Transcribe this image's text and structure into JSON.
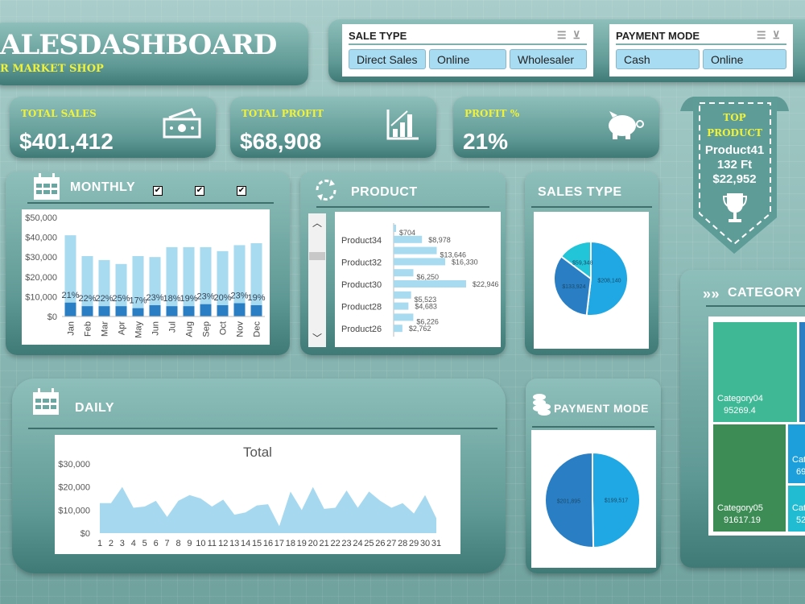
{
  "header": {
    "title": "ALESDASHBOARD",
    "subtitle": "R MARKET SHOP"
  },
  "slicers": [
    {
      "title": "SALE TYPE",
      "items": [
        "Direct Sales",
        "Online",
        "Wholesaler"
      ]
    },
    {
      "title": "PAYMENT MODE",
      "items": [
        "Cash",
        "Online"
      ]
    }
  ],
  "kpis": [
    {
      "label": "TOTAL SALES",
      "value": "$401,412",
      "icon": "money-icon"
    },
    {
      "label": "TOTAL PROFIT",
      "value": "$68,908",
      "icon": "bar-chart-icon"
    },
    {
      "label": "PROFIT %",
      "value": "21%",
      "icon": "piggy-bank-icon"
    }
  ],
  "top_product": {
    "line1": "TOP",
    "line2": "PRODUCT",
    "name": "Product41",
    "qty": "132 Ft",
    "value": "$22,952"
  },
  "panels": {
    "monthly": "MONTHLY",
    "product": "PRODUCT",
    "sales_type": "SALES TYPE",
    "daily": "DAILY",
    "payment_mode": "PAYMENT MODE",
    "category": "CATEGORY"
  },
  "colors": {
    "accent_yellow": "#f0f23a",
    "light_bar": "#a8daf0",
    "dark_bar": "#2a7fc4",
    "area": "#a6d9ef"
  },
  "chart_data": [
    {
      "type": "bar",
      "name": "monthly",
      "categories": [
        "Jan",
        "Feb",
        "Mar",
        "Apr",
        "May",
        "Jun",
        "Jul",
        "Aug",
        "Sep",
        "Oct",
        "Nov",
        "Dec"
      ],
      "series": [
        {
          "values": [
            41000,
            30500,
            28500,
            26500,
            30500,
            30000,
            35000,
            35000,
            35000,
            33000,
            36000,
            37000
          ]
        },
        {
          "values": [
            7000,
            5200,
            5200,
            5200,
            4200,
            5700,
            5200,
            5200,
            6200,
            5700,
            6700,
            5700
          ]
        }
      ],
      "data_labels": [
        "21%",
        "22%",
        "22%",
        "25%",
        "17%",
        "23%",
        "18%",
        "19%",
        "23%",
        "20%",
        "23%",
        "19%"
      ],
      "yticks": [
        "$0",
        "$10,000",
        "$20,000",
        "$30,000",
        "$40,000",
        "$50,000"
      ],
      "ylim": [
        0,
        50000
      ]
    },
    {
      "type": "bar",
      "name": "product",
      "orientation": "horizontal",
      "categories": [
        "",
        "Product34",
        "",
        "Product32",
        "",
        "Product30",
        "",
        "Product28",
        "",
        "Product26"
      ],
      "values": [
        704,
        8978,
        13646,
        16330,
        6250,
        22946,
        5523,
        4683,
        6226,
        2762
      ],
      "data_labels": [
        "$704",
        "$8,978",
        "$13,646",
        "$16,330",
        "$6,250",
        "$22,946",
        "$5,523",
        "$4,683",
        "$6,226",
        "$2,762"
      ]
    },
    {
      "type": "pie",
      "name": "sales_type",
      "values": [
        208140,
        133924,
        59348
      ],
      "data_labels": [
        "$208,140",
        "$133,924",
        "$59,348"
      ],
      "colors": [
        "#1fa8e3",
        "#2a7fc4",
        "#22c4d8"
      ]
    },
    {
      "type": "area",
      "name": "daily",
      "title": "Total",
      "x": [
        1,
        2,
        3,
        4,
        5,
        6,
        7,
        8,
        9,
        10,
        11,
        12,
        13,
        14,
        15,
        16,
        17,
        18,
        19,
        20,
        21,
        22,
        23,
        24,
        25,
        26,
        27,
        28,
        29,
        30,
        31
      ],
      "values": [
        13000,
        13000,
        20000,
        11000,
        11500,
        14000,
        7000,
        14000,
        16500,
        15000,
        11500,
        14500,
        8000,
        9000,
        12000,
        12500,
        3000,
        18000,
        10000,
        20000,
        10500,
        11000,
        18500,
        11000,
        18000,
        14000,
        11000,
        13000,
        8500,
        16500,
        6500
      ],
      "yticks": [
        "$0",
        "$10,000",
        "$20,000",
        "$30,000"
      ],
      "ylim": [
        0,
        30000
      ]
    },
    {
      "type": "pie",
      "name": "payment_mode",
      "values": [
        199517,
        201895
      ],
      "data_labels": [
        "$199,517",
        "$201,895"
      ],
      "colors": [
        "#1fa8e3",
        "#2a7fc4"
      ]
    },
    {
      "type": "heatmap",
      "name": "category_treemap",
      "cells": [
        {
          "label": "Category04",
          "value": "95269.4",
          "color": "#3fb896"
        },
        {
          "label": "Category05",
          "value": "91617.19",
          "color": "#3d8c55"
        },
        {
          "label": "Cat",
          "value": "69",
          "color": "#1d9fdc"
        },
        {
          "label": "Cat",
          "value": "52",
          "color": "#21bcd2"
        }
      ]
    }
  ]
}
